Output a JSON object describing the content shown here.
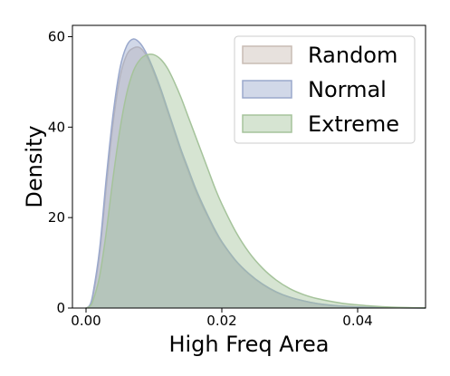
{
  "chart_data": {
    "type": "area",
    "title": "",
    "xlabel": "High Freq Area",
    "ylabel": "Density",
    "xlim": [
      -0.002,
      0.05
    ],
    "ylim": [
      0,
      62.5
    ],
    "xticks": [
      0.0,
      0.02,
      0.04
    ],
    "xtick_labels": [
      "0.00",
      "0.02",
      "0.04"
    ],
    "yticks": [
      0,
      20,
      40,
      60
    ],
    "ytick_labels": [
      "0",
      "20",
      "40",
      "60"
    ],
    "grid": false,
    "legend": {
      "placement": "top-right",
      "entries": [
        "Random",
        "Normal",
        "Extreme"
      ]
    },
    "x": [
      0.0,
      0.0005,
      0.001,
      0.002,
      0.003,
      0.004,
      0.005,
      0.006,
      0.007,
      0.008,
      0.009,
      0.01,
      0.011,
      0.012,
      0.013,
      0.014,
      0.015,
      0.016,
      0.017,
      0.018,
      0.019,
      0.02,
      0.022,
      0.024,
      0.026,
      0.028,
      0.03,
      0.032,
      0.034,
      0.036,
      0.038,
      0.04,
      0.042,
      0.045,
      0.048,
      0.05
    ],
    "series": [
      {
        "name": "Random",
        "color": "#c9bcb4",
        "values": [
          0.0,
          0.5,
          2.5,
          12.0,
          27.0,
          41.0,
          51.0,
          56.0,
          57.5,
          57.5,
          55.5,
          52.0,
          48.0,
          43.5,
          39.0,
          34.5,
          30.5,
          26.5,
          23.0,
          20.0,
          17.0,
          14.5,
          10.5,
          7.5,
          5.2,
          3.5,
          2.4,
          1.6,
          1.0,
          0.6,
          0.4,
          0.25,
          0.15,
          0.07,
          0.03,
          0.01
        ]
      },
      {
        "name": "Normal",
        "color": "#9aa8cc",
        "values": [
          0.0,
          0.5,
          3.0,
          13.0,
          29.0,
          43.0,
          53.0,
          58.0,
          59.5,
          58.5,
          56.0,
          52.5,
          48.5,
          44.0,
          39.5,
          35.0,
          31.0,
          27.0,
          23.5,
          20.3,
          17.3,
          14.7,
          10.6,
          7.6,
          5.3,
          3.6,
          2.4,
          1.6,
          1.0,
          0.65,
          0.4,
          0.25,
          0.15,
          0.07,
          0.03,
          0.01
        ]
      },
      {
        "name": "Extreme",
        "color": "#a5c39b",
        "values": [
          0.0,
          0.3,
          1.5,
          7.0,
          17.0,
          29.0,
          39.5,
          47.5,
          52.5,
          55.0,
          56.0,
          56.0,
          55.0,
          53.0,
          50.0,
          46.5,
          42.5,
          38.5,
          34.5,
          30.5,
          26.5,
          23.0,
          17.0,
          12.3,
          8.8,
          6.2,
          4.3,
          3.0,
          2.1,
          1.5,
          1.0,
          0.7,
          0.45,
          0.2,
          0.08,
          0.03
        ]
      }
    ]
  }
}
